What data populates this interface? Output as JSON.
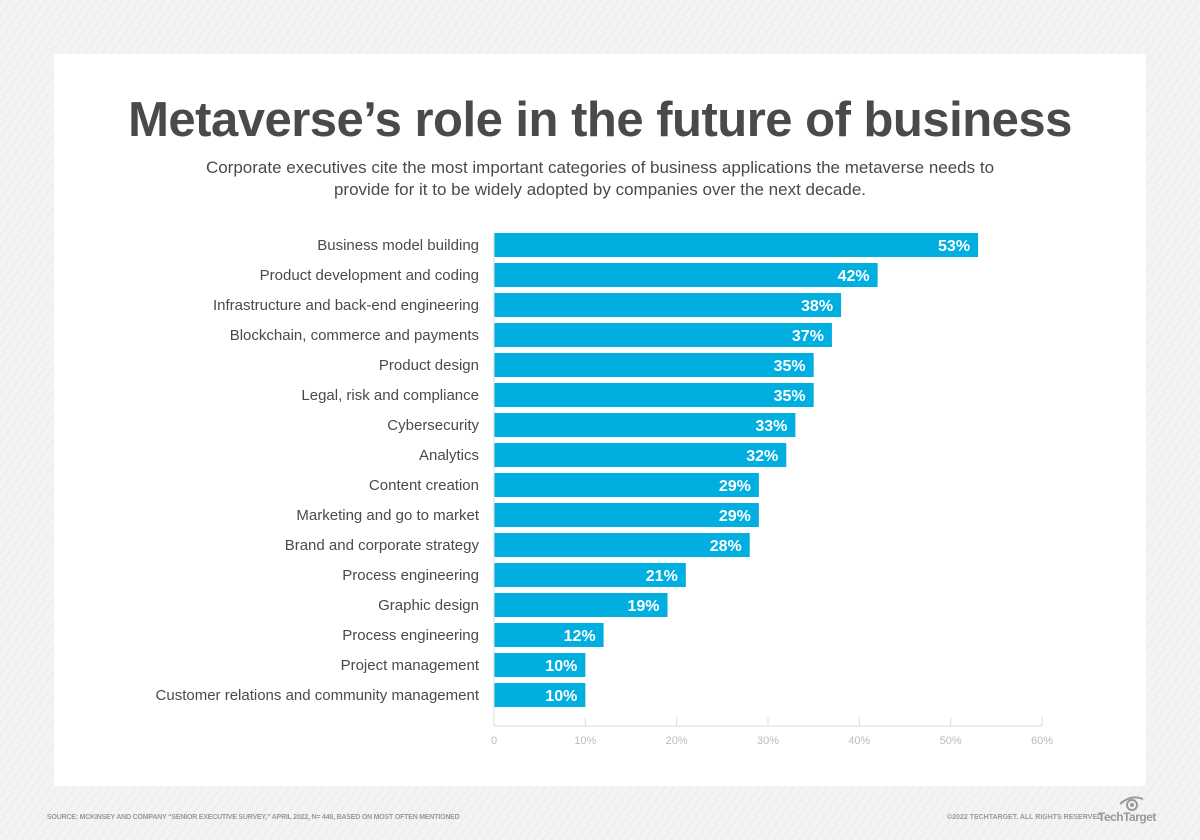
{
  "chart_data": {
    "type": "bar",
    "orientation": "horizontal",
    "title": "Metaverse’s role in the future of business",
    "subtitle": "Corporate executives cite the most important categories of business applications the metaverse needs to provide for it to be widely adopted by companies over the next decade.",
    "categories": [
      "Business model building",
      "Product development and coding",
      "Infrastructure and back-end engineering",
      "Blockchain, commerce and payments",
      "Product design",
      "Legal, risk and compliance",
      "Cybersecurity",
      "Analytics",
      "Content creation",
      "Marketing and go to market",
      "Brand and corporate strategy",
      "Process engineering",
      "Graphic design",
      "Process engineering",
      "Project management",
      "Customer relations and community management"
    ],
    "values": [
      53,
      42,
      38,
      37,
      35,
      35,
      33,
      32,
      29,
      29,
      28,
      21,
      19,
      12,
      10,
      10
    ],
    "data_labels": [
      "53%",
      "42%",
      "38%",
      "37%",
      "35%",
      "35%",
      "33%",
      "32%",
      "29%",
      "29%",
      "28%",
      "21%",
      "19%",
      "12%",
      "10%",
      "10%"
    ],
    "xlim": [
      0,
      60
    ],
    "xticks": [
      0,
      10,
      20,
      30,
      40,
      50,
      60
    ],
    "xtick_labels": [
      "0",
      "10%",
      "20%",
      "30%",
      "40%",
      "50%",
      "60%"
    ],
    "bar_color": "#00aee0",
    "grid": false
  },
  "footer": {
    "source": "SOURCE: MCKINSEY AND COMPANY “SENIOR EXECUTIVE SURVEY,” APRIL 2022, N= 448, BASED ON MOST OFTEN MENTIONED",
    "copyright": "©2022 TECHTARGET. ALL RIGHTS RESERVED",
    "logo": "TechTarget"
  }
}
